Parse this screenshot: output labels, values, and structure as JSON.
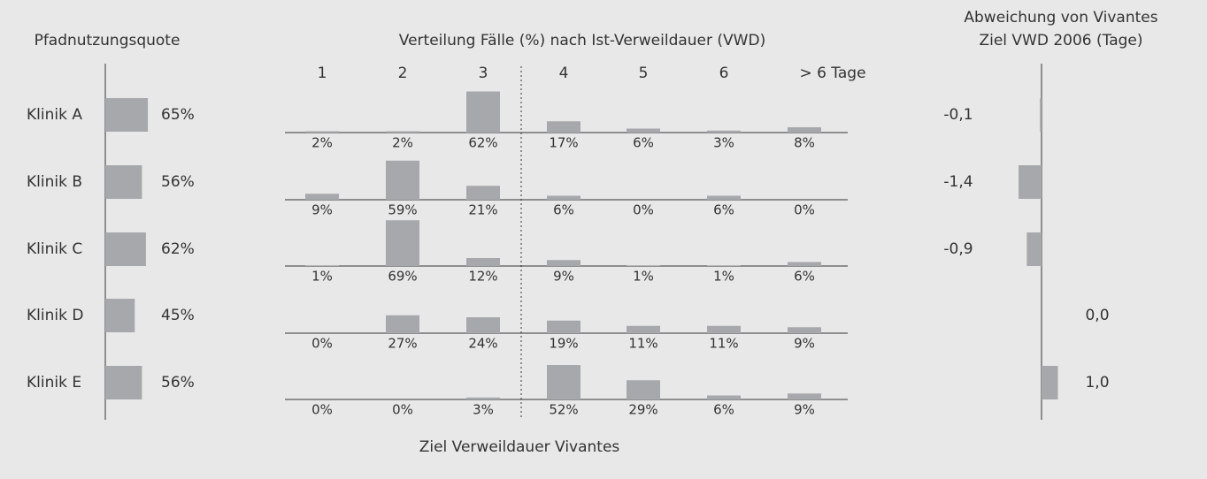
{
  "chart_data": [
    {
      "type": "bar",
      "orientation": "horizontal",
      "title": "Pfadnutzungsquote",
      "categories": [
        "Klinik A",
        "Klinik B",
        "Klinik C",
        "Klinik D",
        "Klinik E"
      ],
      "values": [
        65,
        56,
        62,
        45,
        56
      ],
      "value_labels": [
        "65%",
        "56%",
        "62%",
        "45%",
        "56%"
      ],
      "xlim": [
        0,
        100
      ],
      "color": "#a7a8ab"
    },
    {
      "type": "bar",
      "orientation": "vertical",
      "title": "Verteilung Fälle (%) nach Ist-Verweildauer (VWD)",
      "categories": [
        "1",
        "2",
        "3",
        "4",
        "5",
        "6",
        "> 6 Tage"
      ],
      "ylim": [
        0,
        100
      ],
      "color": "#a7a8ab",
      "annotation": "Ziel Verweildauer Vivantes",
      "series": [
        {
          "name": "Klinik A",
          "values": [
            2,
            2,
            62,
            17,
            6,
            3,
            8
          ],
          "value_labels": [
            "2%",
            "2%",
            "62%",
            "17%",
            "6%",
            "3%",
            "8%"
          ]
        },
        {
          "name": "Klinik B",
          "values": [
            9,
            59,
            21,
            6,
            0,
            6,
            0
          ],
          "value_labels": [
            "9%",
            "59%",
            "21%",
            "6%",
            "0%",
            "6%",
            "0%"
          ]
        },
        {
          "name": "Klinik C",
          "values": [
            1,
            69,
            12,
            9,
            1,
            1,
            6
          ],
          "value_labels": [
            "1%",
            "69%",
            "12%",
            "9%",
            "1%",
            "1%",
            "6%"
          ]
        },
        {
          "name": "Klinik D",
          "values": [
            0,
            27,
            24,
            19,
            11,
            11,
            9
          ],
          "value_labels": [
            "0%",
            "27%",
            "24%",
            "19%",
            "11%",
            "11%",
            "9%"
          ]
        },
        {
          "name": "Klinik E",
          "values": [
            0,
            0,
            3,
            52,
            29,
            6,
            9
          ],
          "value_labels": [
            "0%",
            "0%",
            "3%",
            "52%",
            "29%",
            "6%",
            "9%"
          ]
        }
      ]
    },
    {
      "type": "bar",
      "orientation": "horizontal",
      "title": [
        "Abweichung von Vivantes",
        "Ziel VWD 2006 (Tage)"
      ],
      "values": [
        -0.1,
        -1.4,
        -0.9,
        0.0,
        1.0
      ],
      "value_labels": [
        "-0,1",
        "-1,4",
        "-0,9",
        "0,0",
        "1,0"
      ],
      "xlim": [
        -2,
        2
      ],
      "color": "#a7a8ab"
    }
  ]
}
